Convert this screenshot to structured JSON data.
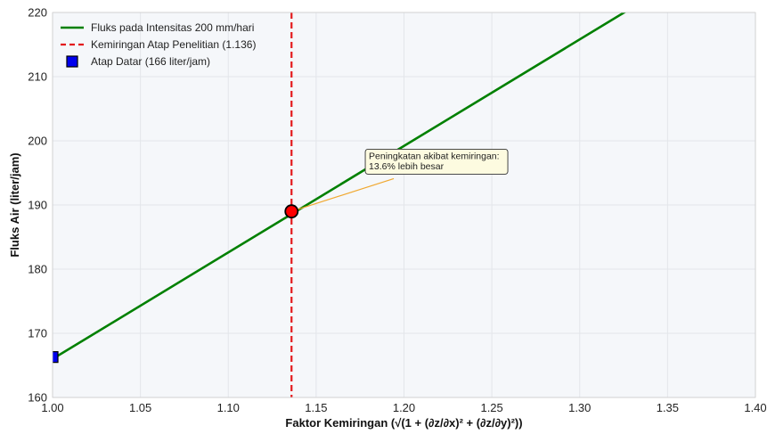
{
  "chart_data": {
    "type": "line",
    "title": "",
    "xlabel": "Faktor Kemiringan (√(1 + (∂z/∂x)² + (∂z/∂y)²))",
    "ylabel": "Fluks Air (liter/jam)",
    "xlim": [
      1.0,
      1.4
    ],
    "ylim": [
      160,
      220
    ],
    "xticks": [
      "1.00",
      "1.05",
      "1.10",
      "1.15",
      "1.20",
      "1.25",
      "1.30",
      "1.35",
      "1.40"
    ],
    "yticks": [
      "160",
      "170",
      "180",
      "190",
      "200",
      "210",
      "220"
    ],
    "grid": true,
    "legend_position": "top-left",
    "series": [
      {
        "name": "Fluks pada Intensitas 200 mm/hari",
        "kind": "line",
        "color": "#008000",
        "x": [
          1.0,
          1.4
        ],
        "y": [
          166.0,
          232.4
        ]
      }
    ],
    "reference_line": {
      "name": "Kemiringan Atap Penelitian (1.136)",
      "axis": "x",
      "value": 1.136,
      "color": "#e31a1c"
    },
    "markers": [
      {
        "name": "Atap Datar (166 liter/jam)",
        "shape": "square",
        "x": 1.0,
        "y": 166.3,
        "color": "#0000ee",
        "in_legend": true
      },
      {
        "name": "",
        "shape": "circle",
        "x": 1.136,
        "y": 189.0,
        "color": "#ff0000",
        "in_legend": false
      }
    ],
    "annotation": {
      "lines": [
        "Peningkatan akibat kemiringan:",
        "13.6% lebih besar"
      ],
      "point": [
        1.136,
        189.0
      ],
      "text_at": [
        1.18,
        195.5
      ],
      "arrow_color": "#f0a830"
    }
  }
}
